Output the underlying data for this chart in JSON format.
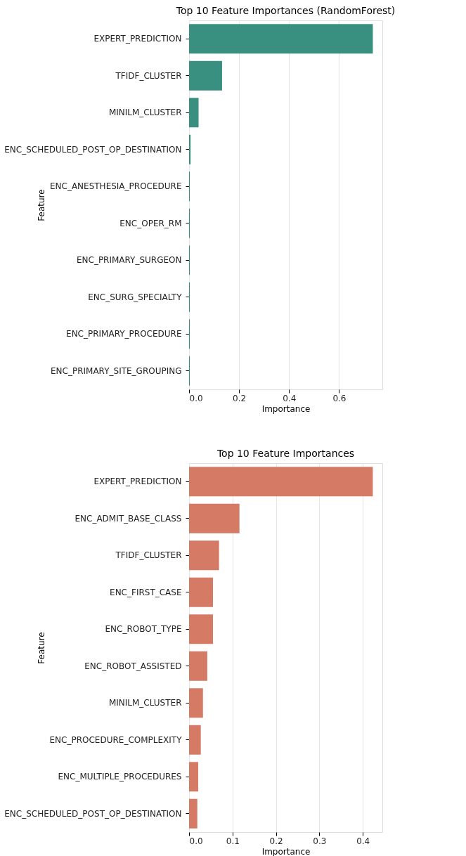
{
  "chart_data": [
    {
      "type": "bar",
      "orientation": "horizontal",
      "title": "Top 10 Feature Importances (RandomForest)",
      "xlabel": "Importance",
      "ylabel": "Feature",
      "categories": [
        "EXPERT_PREDICTION",
        "TFIDF_CLUSTER",
        "MINILM_CLUSTER",
        "ENC_SCHEDULED_POST_OP_DESTINATION",
        "ENC_ANESTHESIA_PROCEDURE",
        "ENC_OPER_RM",
        "ENC_PRIMARY_SURGEON",
        "ENC_SURG_SPECIALTY",
        "ENC_PRIMARY_PROCEDURE",
        "ENC_PRIMARY_SITE_GROUPING"
      ],
      "values": [
        0.735,
        0.132,
        0.038,
        0.006,
        0.003,
        0.003,
        0.003,
        0.003,
        0.003,
        0.003
      ],
      "color": "#3a9080",
      "xlim": [
        0,
        0.773
      ],
      "xticks": [
        {
          "value": 0,
          "label": "0.0"
        },
        0.2,
        0.4,
        0.6
      ],
      "grid": "x"
    },
    {
      "type": "bar",
      "orientation": "horizontal",
      "title": "Top 10 Feature Importances",
      "xlabel": "Importance",
      "ylabel": "Feature",
      "categories": [
        "EXPERT_PREDICTION",
        "ENC_ADMIT_BASE_CLASS",
        "TFIDF_CLUSTER",
        "ENC_FIRST_CASE",
        "ENC_ROBOT_TYPE",
        "ENC_ROBOT_ASSISTED",
        "MINILM_CLUSTER",
        "ENC_PROCEDURE_COMPLEXITY",
        "ENC_MULTIPLE_PROCEDURES",
        "ENC_SCHEDULED_POST_OP_DESTINATION"
      ],
      "values": [
        0.423,
        0.116,
        0.069,
        0.055,
        0.055,
        0.042,
        0.032,
        0.027,
        0.021,
        0.019
      ],
      "color": "#d47a65",
      "xlim": [
        0,
        0.445
      ],
      "xticks": [
        {
          "value": 0,
          "label": "0.0"
        },
        0.1,
        0.2,
        0.3,
        0.4
      ],
      "grid": "x"
    }
  ]
}
